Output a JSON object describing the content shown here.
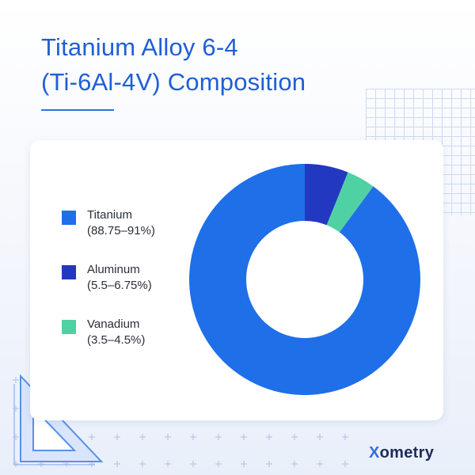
{
  "title_lines": [
    "Titanium Alloy 6-4",
    "(Ti-6Al-4V) Composition"
  ],
  "brand": {
    "x": "X",
    "rest": "ometry"
  },
  "colors": {
    "titanium": "#1f6fe8",
    "aluminum": "#2338c0",
    "vanadium": "#4fd1a3",
    "title": "#1f5fd6"
  },
  "chart_data": {
    "type": "pie",
    "donut": true,
    "legend_position": "left",
    "series": [
      {
        "name": "Titanium",
        "range": "(88.75–91%)",
        "value": 89.9
      },
      {
        "name": "Aluminum",
        "range": "(5.5–6.75%)",
        "value": 6.1
      },
      {
        "name": "Vanadium",
        "range": "(3.5–4.5%)",
        "value": 4.0
      }
    ]
  }
}
